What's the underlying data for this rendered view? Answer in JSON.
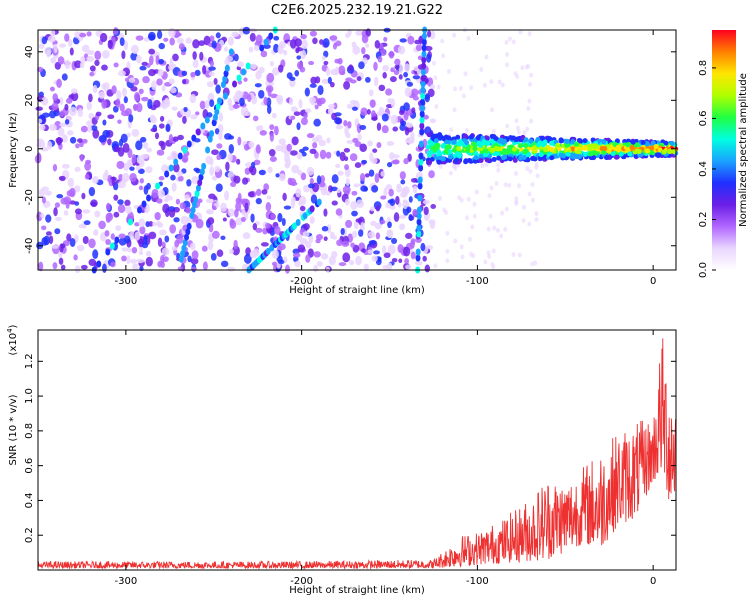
{
  "title": "C2E6.2025.232.19.21.G22",
  "chart_data": [
    {
      "type": "heatmap",
      "name": "spectrogram",
      "xlabel": "Height of straight line (km)",
      "ylabel": "Frequency (Hz)",
      "xlim": [
        -350,
        13
      ],
      "ylim": [
        -50,
        49
      ],
      "xticks": [
        -300,
        -200,
        -100,
        0
      ],
      "xtick_labels": [
        "-300",
        "-200",
        "-100",
        "0"
      ],
      "yticks": [
        -40,
        -20,
        0,
        20,
        40
      ],
      "ytick_labels": [
        "-40",
        "-20",
        "0",
        "20",
        "40"
      ],
      "noise_region_x": [
        -350,
        -125
      ],
      "signal_band": {
        "x": [
          -128,
          13
        ],
        "center_hz": 0,
        "halfwidth_hz": 6
      },
      "streaks": [
        {
          "x": [
            -318,
            -215
          ],
          "y": [
            -50,
            49
          ]
        },
        {
          "x": [
            -270,
            -240
          ],
          "y": [
            -50,
            40
          ]
        },
        {
          "x": [
            -230,
            -190
          ],
          "y": [
            -50,
            -22
          ]
        },
        {
          "x": [
            -134,
            -130
          ],
          "y": [
            -50,
            49
          ]
        }
      ],
      "colorbar": {
        "label": "Normalized spectral amplitude",
        "range": [
          0,
          0.95
        ],
        "ticks": [
          0.0,
          0.2,
          0.4,
          0.6,
          0.8
        ],
        "tick_labels": [
          "0.0",
          "0.2",
          "0.4",
          "0.6",
          "0.8"
        ],
        "colors": [
          "#ffffff",
          "#e9d5ff",
          "#b066ff",
          "#6b1fe6",
          "#2030ff",
          "#1aa4ff",
          "#00ffe0",
          "#20ff40",
          "#b0ff00",
          "#ffe600",
          "#ff8000",
          "#ff0020"
        ]
      }
    },
    {
      "type": "line",
      "name": "snr",
      "xlabel": "Height of straight line (km)",
      "ylabel": "SNR (10 * v/v)",
      "yscale_label": "(x10",
      "yscale_exponent": "4",
      "xlim": [
        -350,
        13
      ],
      "ylim": [
        0,
        1.38
      ],
      "xticks": [
        -300,
        -200,
        -100,
        0
      ],
      "xtick_labels": [
        "-300",
        "-200",
        "-100",
        "0"
      ],
      "yticks": [
        0.2,
        0.4,
        0.6,
        0.8,
        1.0,
        1.2
      ],
      "ytick_labels": [
        "0.2",
        "0.4",
        "0.6",
        "0.8",
        "1.0",
        "1.2"
      ],
      "line_color": "#ee3030",
      "envelope": [
        {
          "x": -350,
          "low": 0.01,
          "high": 0.05
        },
        {
          "x": -200,
          "low": 0.01,
          "high": 0.05
        },
        {
          "x": -125,
          "low": 0.01,
          "high": 0.06
        },
        {
          "x": -110,
          "low": 0.02,
          "high": 0.2
        },
        {
          "x": -100,
          "low": 0.03,
          "high": 0.22
        },
        {
          "x": -85,
          "low": 0.04,
          "high": 0.3
        },
        {
          "x": -70,
          "low": 0.05,
          "high": 0.42
        },
        {
          "x": -60,
          "low": 0.06,
          "high": 0.55
        },
        {
          "x": -50,
          "low": 0.1,
          "high": 0.52
        },
        {
          "x": -40,
          "low": 0.15,
          "high": 0.6
        },
        {
          "x": -30,
          "low": 0.12,
          "high": 0.7
        },
        {
          "x": -20,
          "low": 0.25,
          "high": 0.8
        },
        {
          "x": -10,
          "low": 0.3,
          "high": 0.85
        },
        {
          "x": 0,
          "low": 0.5,
          "high": 0.88
        },
        {
          "x": 5,
          "low": 0.55,
          "high": 1.38
        },
        {
          "x": 10,
          "low": 0.35,
          "high": 1.1
        },
        {
          "x": 13,
          "low": 0.4,
          "high": 1.1
        }
      ]
    }
  ]
}
